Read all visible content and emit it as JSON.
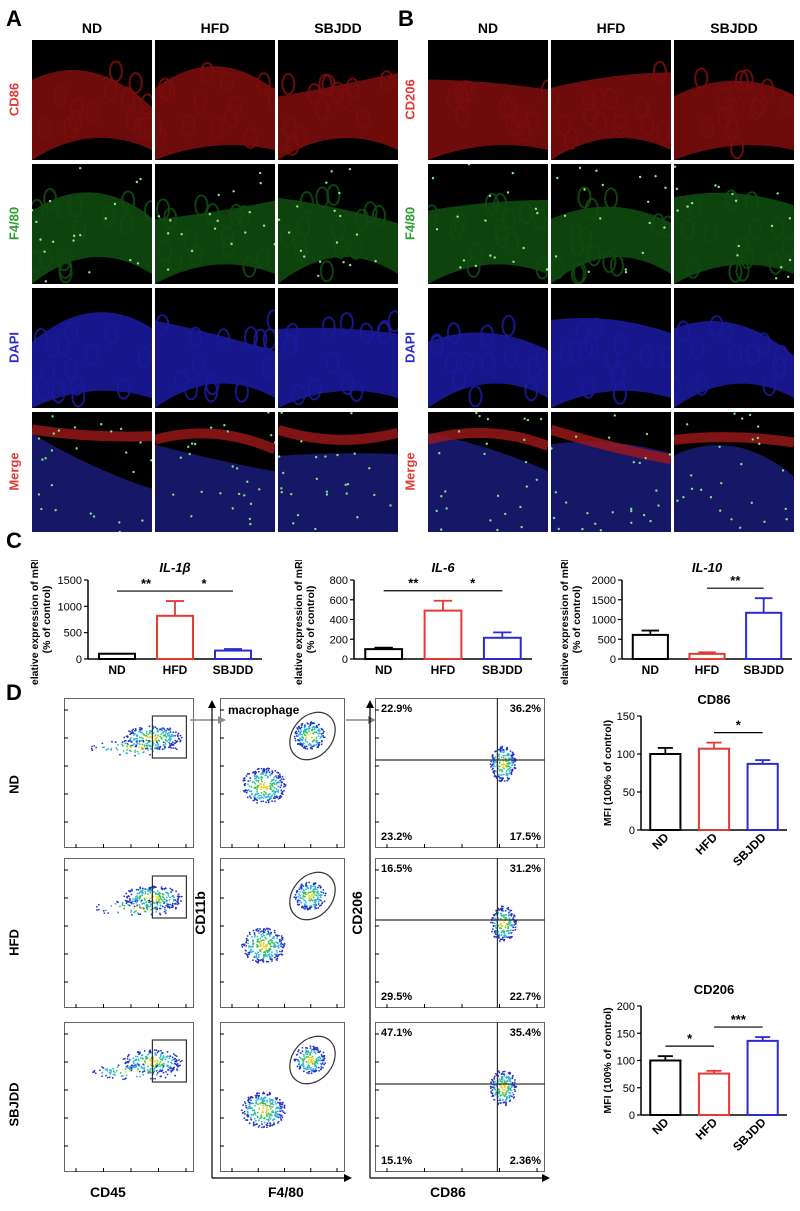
{
  "panels": {
    "A": "A",
    "B": "B",
    "C": "C",
    "D": "D"
  },
  "groups": [
    "ND",
    "HFD",
    "SBJDD"
  ],
  "panelA": {
    "rows": [
      {
        "label": "CD86",
        "color": "#e53935"
      },
      {
        "label": "F4/80",
        "color": "#2e9e2e"
      },
      {
        "label": "DAPI",
        "color": "#2b2bd6"
      },
      {
        "label": "Merge",
        "color": "#e53935",
        "color2": "#2b2bd6"
      }
    ]
  },
  "panelB": {
    "rows": [
      {
        "label": "CD206",
        "color": "#e53935"
      },
      {
        "label": "F4/80",
        "color": "#2e9e2e"
      },
      {
        "label": "DAPI",
        "color": "#2b2bd6"
      },
      {
        "label": "Merge",
        "color": "#e53935",
        "color2": "#2b2bd6"
      }
    ]
  },
  "panelD": {
    "gate_label": "macrophage",
    "axis_cd45": "CD45",
    "axis_f480": "F4/80",
    "axis_cd86": "CD86",
    "axis_cd11b": "CD11b",
    "axis_cd206": "CD206",
    "quadrants": [
      {
        "tl": "22.9%",
        "tr": "36.2%",
        "bl": "23.2%",
        "br": "17.5%"
      },
      {
        "tl": "16.5%",
        "tr": "31.2%",
        "bl": "29.5%",
        "br": "22.7%"
      },
      {
        "tl": "47.1%",
        "tr": "35.4%",
        "bl": "15.1%",
        "br": "2.36%"
      }
    ]
  },
  "chart_data": [
    {
      "type": "bar",
      "title": "IL-1β",
      "ylabel": "Relative expression of mRNA (% of control)",
      "categories": [
        "ND",
        "HFD",
        "SBJDD"
      ],
      "values": [
        100,
        820,
        160
      ],
      "errors": [
        0,
        280,
        30
      ],
      "ylim": [
        0,
        1500
      ],
      "yticks": [
        0,
        500,
        1000,
        1500
      ],
      "colors": [
        "#000000",
        "#e53935",
        "#2b2bd6"
      ],
      "sig": [
        {
          "from": 0,
          "to": 1,
          "label": "**"
        },
        {
          "from": 1,
          "to": 2,
          "label": "*"
        }
      ]
    },
    {
      "type": "bar",
      "title": "IL-6",
      "ylabel": "Relative expression of mRNA (% of control)",
      "categories": [
        "ND",
        "HFD",
        "SBJDD"
      ],
      "values": [
        100,
        490,
        215
      ],
      "errors": [
        15,
        100,
        55
      ],
      "ylim": [
        0,
        800
      ],
      "yticks": [
        0,
        200,
        400,
        600,
        800
      ],
      "colors": [
        "#000000",
        "#e53935",
        "#2b2bd6"
      ],
      "sig": [
        {
          "from": 0,
          "to": 1,
          "label": "**"
        },
        {
          "from": 1,
          "to": 2,
          "label": "*"
        }
      ]
    },
    {
      "type": "bar",
      "title": "IL-10",
      "ylabel": "Relative expression of mRNA (% of control)",
      "categories": [
        "ND",
        "HFD",
        "SBJDD"
      ],
      "values": [
        610,
        130,
        1170
      ],
      "errors": [
        110,
        40,
        370
      ],
      "ylim": [
        0,
        2000
      ],
      "yticks": [
        0,
        500,
        1000,
        1500,
        2000
      ],
      "colors": [
        "#000000",
        "#e53935",
        "#2b2bd6"
      ],
      "sig": [
        {
          "from": 1,
          "to": 2,
          "label": "**"
        }
      ]
    },
    {
      "type": "bar",
      "title": "CD86",
      "ylabel": "MFI (100% of control)",
      "categories": [
        "ND",
        "HFD",
        "SBJDD"
      ],
      "values": [
        100,
        107,
        87
      ],
      "errors": [
        8,
        8,
        5
      ],
      "ylim": [
        0,
        150
      ],
      "yticks": [
        0,
        50,
        100,
        150
      ],
      "colors": [
        "#000000",
        "#e53935",
        "#2b2bd6"
      ],
      "sig": [
        {
          "from": 1,
          "to": 2,
          "label": "*"
        }
      ]
    },
    {
      "type": "bar",
      "title": "CD206",
      "ylabel": "MFI (100% of control)",
      "categories": [
        "ND",
        "HFD",
        "SBJDD"
      ],
      "values": [
        100,
        76,
        136
      ],
      "errors": [
        8,
        5,
        7
      ],
      "ylim": [
        0,
        200
      ],
      "yticks": [
        0,
        50,
        100,
        150,
        200
      ],
      "colors": [
        "#000000",
        "#e53935",
        "#2b2bd6"
      ],
      "sig": [
        {
          "from": 0,
          "to": 1,
          "label": "*"
        },
        {
          "from": 1,
          "to": 2,
          "label": "***"
        }
      ]
    }
  ]
}
